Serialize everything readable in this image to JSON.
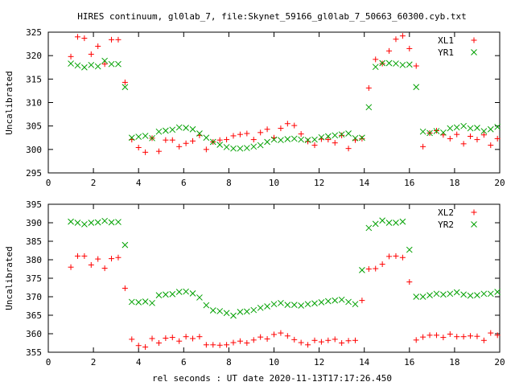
{
  "figure": {
    "title": "HIRES continuum, gl0lab_7, file:Skynet_59166_gl0lab_7_50663_60300.cyb.txt",
    "xlabel": "rel seconds : UT date 2020-11-13T17:17:26.450"
  },
  "chart_data": [
    {
      "type": "scatter",
      "ylabel": "Uncalibrated",
      "xlim": [
        0,
        20
      ],
      "ylim": [
        295,
        325
      ],
      "xticks": [
        0,
        2,
        4,
        6,
        8,
        10,
        12,
        14,
        16,
        18,
        20
      ],
      "yticks": [
        295,
        300,
        305,
        310,
        315,
        320,
        325
      ],
      "grid": false,
      "legend_position": "top-right",
      "series": [
        {
          "name": "XL1",
          "marker": "plus",
          "color": "#ff0000",
          "x": [
            1.0,
            1.3,
            1.6,
            1.9,
            2.2,
            2.5,
            2.8,
            3.1,
            3.4,
            3.7,
            4.0,
            4.3,
            4.6,
            4.9,
            5.2,
            5.5,
            5.8,
            6.1,
            6.4,
            6.7,
            7.0,
            7.3,
            7.6,
            7.9,
            8.2,
            8.5,
            8.8,
            9.1,
            9.4,
            9.7,
            10.0,
            10.3,
            10.6,
            10.9,
            11.2,
            11.5,
            11.8,
            12.1,
            12.4,
            12.7,
            13.0,
            13.3,
            13.6,
            13.9,
            14.2,
            14.5,
            14.8,
            15.1,
            15.4,
            15.7,
            16.0,
            16.3,
            16.6,
            16.9,
            17.2,
            17.5,
            17.8,
            18.1,
            18.4,
            18.7,
            19.0,
            19.3,
            19.6,
            19.9
          ],
          "values": [
            319.8,
            324.0,
            323.7,
            320.3,
            322.0,
            318.2,
            323.4,
            323.4,
            314.3,
            302.1,
            300.4,
            299.4,
            302.4,
            299.6,
            302.0,
            302.0,
            300.6,
            301.3,
            301.8,
            303.0,
            300.0,
            301.6,
            302.0,
            302.1,
            302.9,
            303.2,
            303.4,
            302.1,
            303.6,
            304.3,
            302.5,
            304.5,
            305.5,
            305.1,
            303.3,
            301.7,
            300.9,
            302.2,
            302.1,
            301.4,
            303.0,
            300.2,
            302.0,
            302.3,
            313.1,
            319.2,
            318.3,
            321.0,
            323.5,
            324.2,
            321.5,
            317.8,
            300.6,
            303.5,
            304.0,
            303.1,
            302.3,
            303.2,
            301.2,
            302.8,
            302.1,
            303.1,
            300.9,
            302.3
          ]
        },
        {
          "name": "YR1",
          "marker": "cross",
          "color": "#00a000",
          "x": [
            1.0,
            1.3,
            1.6,
            1.9,
            2.2,
            2.5,
            2.8,
            3.1,
            3.4,
            3.7,
            4.0,
            4.3,
            4.6,
            4.9,
            5.2,
            5.5,
            5.8,
            6.1,
            6.4,
            6.7,
            7.0,
            7.3,
            7.6,
            7.9,
            8.2,
            8.5,
            8.8,
            9.1,
            9.4,
            9.7,
            10.0,
            10.3,
            10.6,
            10.9,
            11.2,
            11.5,
            11.8,
            12.1,
            12.4,
            12.7,
            13.0,
            13.3,
            13.6,
            13.9,
            14.2,
            14.5,
            14.8,
            15.1,
            15.4,
            15.7,
            16.0,
            16.3,
            16.6,
            16.9,
            17.2,
            17.5,
            17.8,
            18.1,
            18.4,
            18.7,
            19.0,
            19.3,
            19.6,
            19.9
          ],
          "values": [
            318.3,
            317.9,
            317.5,
            318.0,
            317.7,
            318.9,
            318.2,
            318.2,
            313.3,
            302.5,
            302.7,
            302.9,
            302.4,
            303.8,
            304.0,
            304.2,
            304.7,
            304.6,
            304.3,
            303.4,
            302.5,
            301.6,
            301.0,
            300.5,
            300.2,
            300.2,
            300.3,
            300.6,
            300.9,
            301.6,
            302.1,
            302.0,
            302.2,
            302.3,
            302.1,
            302.0,
            302.1,
            302.6,
            302.8,
            303.0,
            303.2,
            303.4,
            302.4,
            302.5,
            309.0,
            317.6,
            318.4,
            318.4,
            318.3,
            318.0,
            318.1,
            313.3,
            303.8,
            303.5,
            303.9,
            303.6,
            304.5,
            304.7,
            305.0,
            304.5,
            304.6,
            303.9,
            304.3,
            304.8
          ]
        }
      ]
    },
    {
      "type": "scatter",
      "ylabel": "Uncalibrated",
      "xlim": [
        0,
        20
      ],
      "ylim": [
        355,
        395
      ],
      "xticks": [
        0,
        2,
        4,
        6,
        8,
        10,
        12,
        14,
        16,
        18,
        20
      ],
      "yticks": [
        355,
        360,
        365,
        370,
        375,
        380,
        385,
        390,
        395
      ],
      "grid": false,
      "legend_position": "top-right",
      "series": [
        {
          "name": "XL2",
          "marker": "plus",
          "color": "#ff0000",
          "x": [
            1.0,
            1.3,
            1.6,
            1.9,
            2.2,
            2.5,
            2.8,
            3.1,
            3.4,
            3.7,
            4.0,
            4.3,
            4.6,
            4.9,
            5.2,
            5.5,
            5.8,
            6.1,
            6.4,
            6.7,
            7.0,
            7.3,
            7.6,
            7.9,
            8.2,
            8.5,
            8.8,
            9.1,
            9.4,
            9.7,
            10.0,
            10.3,
            10.6,
            10.9,
            11.2,
            11.5,
            11.8,
            12.1,
            12.4,
            12.7,
            13.0,
            13.3,
            13.6,
            13.9,
            14.2,
            14.5,
            14.8,
            15.1,
            15.4,
            15.7,
            16.0,
            16.3,
            16.6,
            16.9,
            17.2,
            17.5,
            17.8,
            18.1,
            18.4,
            18.7,
            19.0,
            19.3,
            19.6,
            19.9
          ],
          "values": [
            378.0,
            381.0,
            381.0,
            378.6,
            380.2,
            377.7,
            380.3,
            380.6,
            372.3,
            358.5,
            356.8,
            356.4,
            358.7,
            357.5,
            358.8,
            359.0,
            358.0,
            359.2,
            358.7,
            359.2,
            357.0,
            357.0,
            356.9,
            357.0,
            357.6,
            358.0,
            357.5,
            358.3,
            359.1,
            358.6,
            359.8,
            360.2,
            359.4,
            358.4,
            357.6,
            357.0,
            358.2,
            357.8,
            358.2,
            358.5,
            357.5,
            358.1,
            358.2,
            369.0,
            377.5,
            377.6,
            378.8,
            380.9,
            381.0,
            380.6,
            374.0,
            358.3,
            359.1,
            359.6,
            359.6,
            359.0,
            359.9,
            359.2,
            359.2,
            359.4,
            359.3,
            358.2,
            360.2,
            359.6
          ]
        },
        {
          "name": "YR2",
          "marker": "cross",
          "color": "#00a000",
          "x": [
            1.0,
            1.3,
            1.6,
            1.9,
            2.2,
            2.5,
            2.8,
            3.1,
            3.4,
            3.7,
            4.0,
            4.3,
            4.6,
            4.9,
            5.2,
            5.5,
            5.8,
            6.1,
            6.4,
            6.7,
            7.0,
            7.3,
            7.6,
            7.9,
            8.2,
            8.5,
            8.8,
            9.1,
            9.4,
            9.7,
            10.0,
            10.3,
            10.6,
            10.9,
            11.2,
            11.5,
            11.8,
            12.1,
            12.4,
            12.7,
            13.0,
            13.3,
            13.6,
            13.9,
            14.2,
            14.5,
            14.8,
            15.1,
            15.4,
            15.7,
            16.0,
            16.3,
            16.6,
            16.9,
            17.2,
            17.5,
            17.8,
            18.1,
            18.4,
            18.7,
            19.0,
            19.3,
            19.6,
            19.9
          ],
          "values": [
            390.3,
            390.0,
            389.6,
            390.0,
            390.1,
            390.5,
            390.1,
            390.2,
            384.0,
            368.6,
            368.5,
            368.7,
            368.3,
            370.4,
            370.6,
            370.7,
            371.3,
            371.4,
            370.9,
            369.8,
            367.7,
            366.3,
            366.1,
            365.6,
            364.9,
            365.9,
            366.0,
            366.4,
            367.0,
            367.4,
            368.0,
            368.3,
            367.8,
            367.8,
            367.6,
            368.0,
            368.2,
            368.5,
            368.8,
            369.0,
            369.2,
            368.6,
            368.0,
            377.2,
            388.6,
            389.7,
            390.6,
            390.0,
            390.0,
            390.3,
            382.7,
            370.0,
            370.0,
            370.4,
            370.8,
            370.6,
            370.8,
            371.2,
            370.6,
            370.3,
            370.4,
            370.8,
            370.8,
            371.3
          ]
        }
      ]
    }
  ]
}
